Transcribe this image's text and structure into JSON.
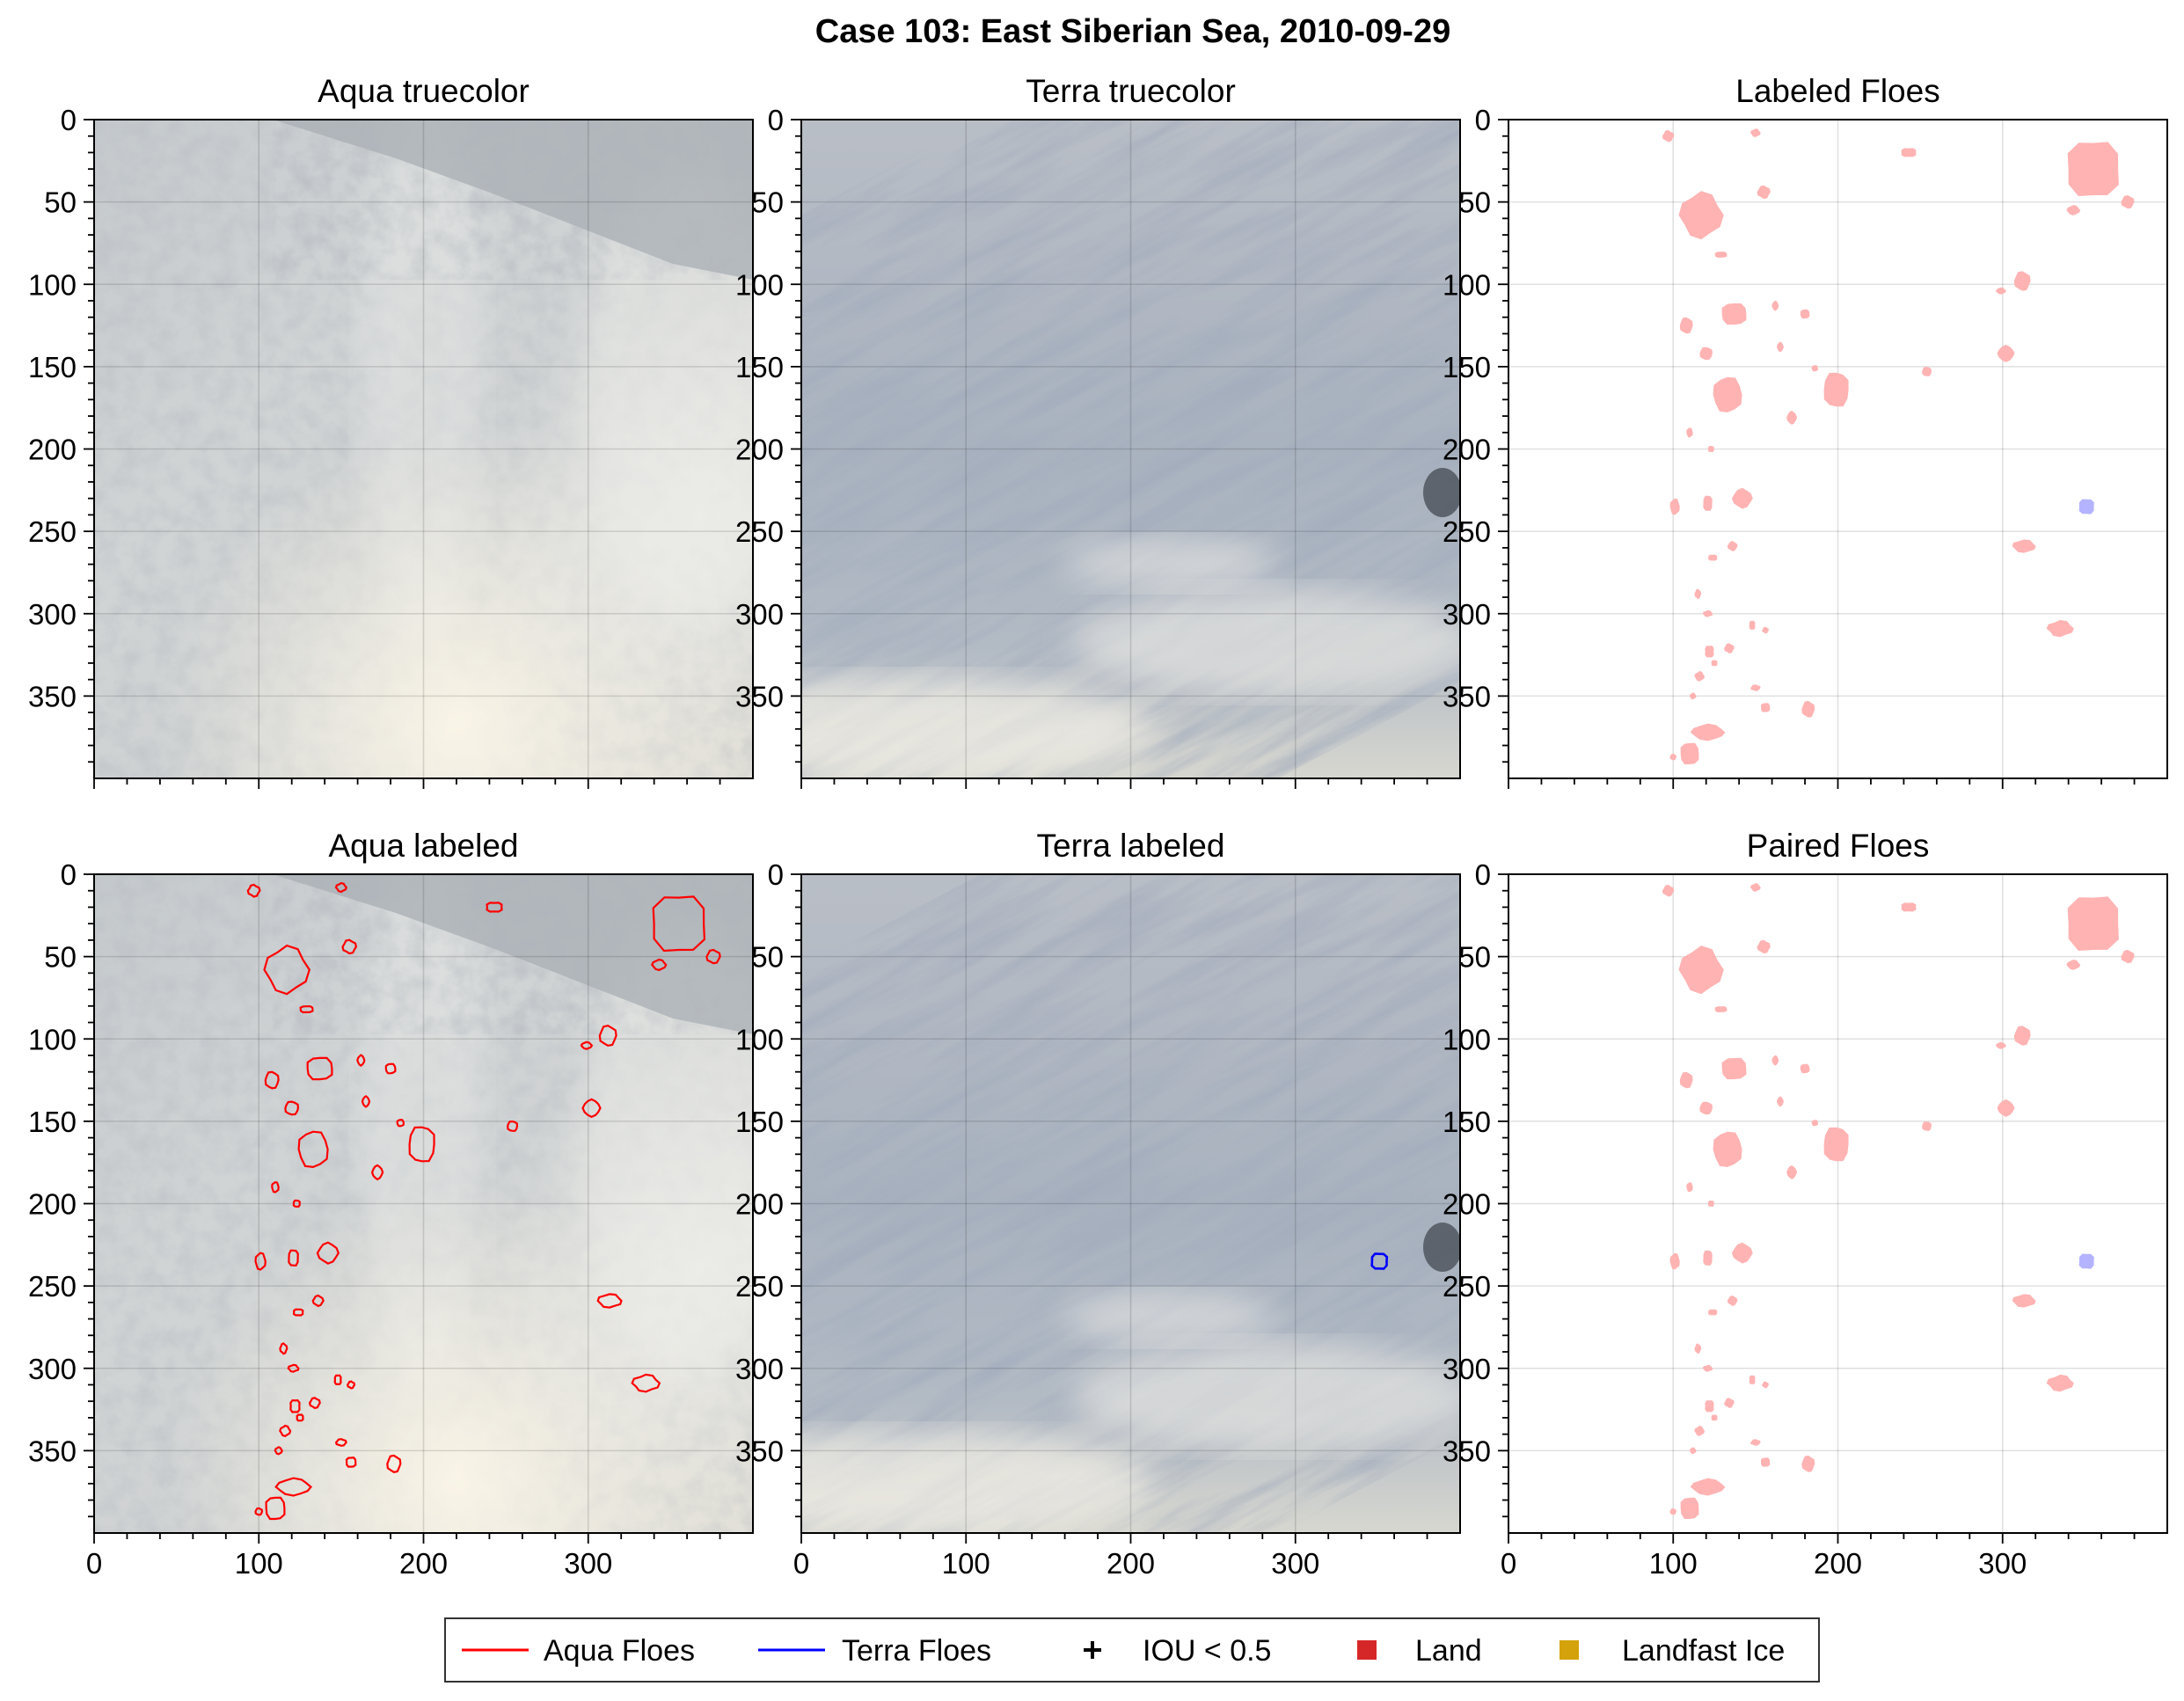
{
  "figure": {
    "title": "Case 103: East Siberian Sea, 2010-09-29"
  },
  "panel_titles": [
    "Aqua truecolor",
    "Terra truecolor",
    "Labeled Floes",
    "Aqua labeled",
    "Terra labeled",
    "Paired Floes"
  ],
  "legend": {
    "items": [
      {
        "label": "Aqua Floes",
        "kind": "line",
        "color": "#ff0000"
      },
      {
        "label": "Terra Floes",
        "kind": "line",
        "color": "#0000ff"
      },
      {
        "label": "IOU < 0.5",
        "kind": "plus",
        "color": "#000000"
      },
      {
        "label": "Land",
        "kind": "square",
        "color": "#d62728"
      },
      {
        "label": "Landfast Ice",
        "kind": "square",
        "color": "#d4a20a"
      }
    ]
  },
  "chart_data": {
    "type": "image-grid",
    "x_ticks": [
      0,
      100,
      200,
      300
    ],
    "y_ticks": [
      0,
      50,
      100,
      150,
      200,
      250,
      300,
      350
    ],
    "xlim": [
      0,
      400
    ],
    "ylim": [
      400,
      0
    ],
    "grid": true,
    "legend_position": "bottom-center",
    "floe_color": "#ffb3b3",
    "terra_floe_color": "#b3b3ff",
    "aqua_floes": [
      [
        97,
        10,
        3.5,
        3.5
      ],
      [
        150,
        8,
        3,
        2.5
      ],
      [
        243,
        20,
        5,
        3
      ],
      [
        155,
        44,
        4,
        4
      ],
      [
        117,
        58,
        13,
        14
      ],
      [
        355,
        30,
        17,
        18
      ],
      [
        376,
        50,
        4,
        4
      ],
      [
        343,
        55,
        4,
        3
      ],
      [
        129,
        82,
        4,
        2
      ],
      [
        312,
        98,
        5,
        6
      ],
      [
        299,
        104,
        3,
        2
      ],
      [
        137,
        118,
        8,
        7
      ],
      [
        108,
        125,
        4,
        5
      ],
      [
        162,
        113,
        2,
        3
      ],
      [
        180,
        118,
        3,
        3
      ],
      [
        120,
        142,
        4,
        4
      ],
      [
        165,
        138,
        2,
        3
      ],
      [
        186,
        151,
        2,
        2
      ],
      [
        254,
        153,
        3,
        3
      ],
      [
        302,
        142,
        5,
        5
      ],
      [
        133,
        167,
        9,
        11
      ],
      [
        199,
        164,
        8,
        11
      ],
      [
        172,
        181,
        3,
        4
      ],
      [
        110,
        190,
        2,
        3
      ],
      [
        123,
        200,
        2,
        2
      ],
      [
        142,
        230,
        6,
        6
      ],
      [
        101,
        235,
        3,
        5
      ],
      [
        121,
        233,
        3,
        5
      ],
      [
        136,
        259,
        3,
        3
      ],
      [
        313,
        259,
        7,
        4
      ],
      [
        124,
        266,
        3,
        2
      ],
      [
        115,
        288,
        2,
        3
      ],
      [
        121,
        300,
        3,
        2
      ],
      [
        148,
        307,
        2,
        3
      ],
      [
        156,
        310,
        2,
        2
      ],
      [
        335,
        309,
        8,
        5
      ],
      [
        122,
        323,
        3,
        4
      ],
      [
        134,
        321,
        3,
        3
      ],
      [
        116,
        338,
        3,
        3
      ],
      [
        125,
        330,
        2,
        2
      ],
      [
        150,
        345,
        3,
        2
      ],
      [
        112,
        350,
        2,
        2
      ],
      [
        156,
        357,
        3,
        3
      ],
      [
        182,
        358,
        4,
        5
      ],
      [
        121,
        372,
        10,
        5
      ],
      [
        110,
        385,
        6,
        7
      ],
      [
        100,
        387,
        2,
        2
      ]
    ],
    "terra_floes": [
      [
        351,
        235,
        5,
        5
      ]
    ]
  }
}
